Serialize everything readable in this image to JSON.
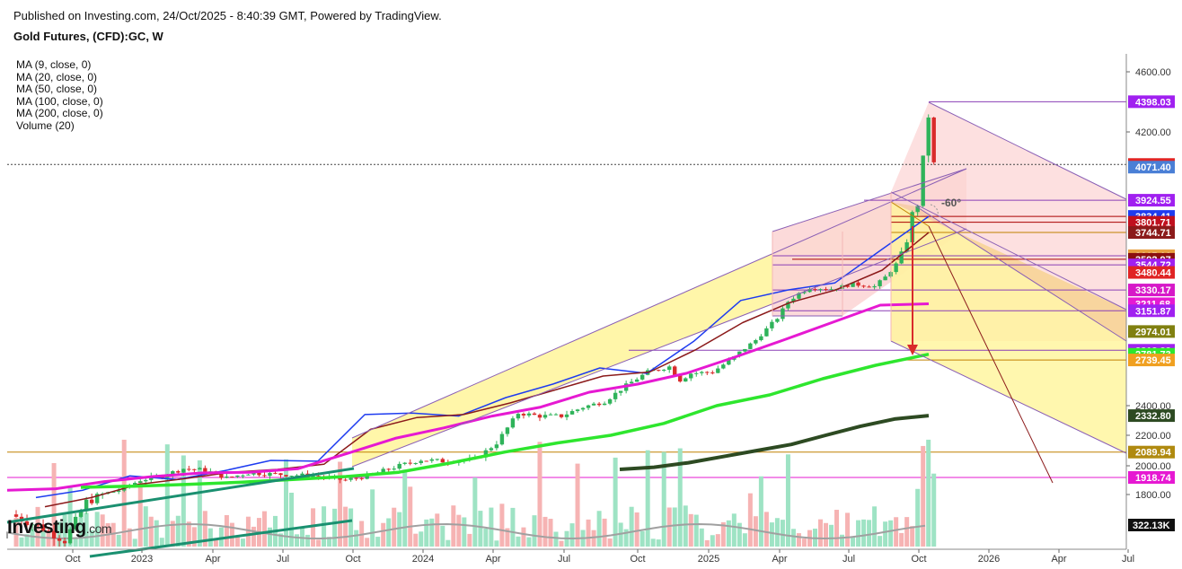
{
  "header": {
    "published": "Published on Investing.com, 24/Oct/2025 - 8:40:39 GMT, Powered by TradingView.",
    "title": "Gold Futures, (CFD):GC, W"
  },
  "indicators": [
    "MA (9, close, 0)",
    "MA (20, close, 0)",
    "MA (50, close, 0)",
    "MA (100, close, 0)",
    "MA (200, close, 0)",
    "Volume (20)"
  ],
  "logo": {
    "main": "Investing",
    "suffix": ".com"
  },
  "annotation_angle": "-60°",
  "colors": {
    "ma9": "#1e3cf0",
    "ma20": "#8b1a1a",
    "ma50": "#e619d2",
    "ma100": "#2ee62e",
    "ma200": "#2d4a22",
    "up": "#2fb35a",
    "down": "#d92b2b",
    "channel": "#fff59a",
    "pink": "#fcd6d6"
  },
  "chart_data": {
    "type": "line",
    "title": "Gold Futures, (CFD):GC, W",
    "x_ticks": [
      "Oct",
      "2023",
      "Apr",
      "Jul",
      "Oct",
      "2024",
      "Apr",
      "Jul",
      "Oct",
      "2025",
      "Apr",
      "Jul",
      "Oct",
      "2026",
      "Apr",
      "Jul"
    ],
    "y_ticks": [
      1800,
      2000,
      2200,
      2400,
      4200,
      4600
    ],
    "ylim": [
      1630,
      4740
    ],
    "price_labels": [
      {
        "value": 4398.03,
        "text": "4398.03",
        "color": "#a020f0"
      },
      {
        "value": 4081.11,
        "text": "4081.11",
        "color": "#e02424"
      },
      {
        "value": 4071.4,
        "text": "4071.40",
        "color": "#4a7fd6"
      },
      {
        "value": 3924.55,
        "text": "3924.55",
        "color": "#a020f0"
      },
      {
        "value": 3834.41,
        "text": "3834.41",
        "color": "#1e3cf0"
      },
      {
        "value": 3801.71,
        "text": "3801.71",
        "color": "#c0101e"
      },
      {
        "value": 3744.71,
        "text": "3744.71",
        "color": "#8b1a1a"
      },
      {
        "value": 3615.16,
        "text": "3615.16",
        "color": "#e8a040"
      },
      {
        "value": 3592.97,
        "text": "3592.97",
        "color": "#8b1010"
      },
      {
        "value": 3544.72,
        "text": "3544.72",
        "color": "#a020f0"
      },
      {
        "value": 3480.44,
        "text": "3480.44",
        "color": "#e02424"
      },
      {
        "value": 3330.17,
        "text": "3330.17",
        "color": "#d619c8"
      },
      {
        "value": 3211.68,
        "text": "3211.68",
        "color": "#e619d2"
      },
      {
        "value": 3151.87,
        "text": "3151.87",
        "color": "#a020f0"
      },
      {
        "value": 2974.01,
        "text": "2974.01",
        "color": "#808010"
      },
      {
        "value": 2813.23,
        "text": "2813.23",
        "color": "#a020f0"
      },
      {
        "value": 2781.73,
        "text": "2781.73",
        "color": "#2ee62e"
      },
      {
        "value": 2739.45,
        "text": "2739.45",
        "color": "#f0a020"
      },
      {
        "value": 2332.8,
        "text": "2332.80",
        "color": "#2d4a22"
      },
      {
        "value": 2089.94,
        "text": "2089.94",
        "color": "#b08a10"
      },
      {
        "value": 1918.74,
        "text": "1918.74",
        "color": "#e619d2"
      }
    ],
    "volume_label": "322.13K",
    "series": [
      {
        "name": "MA (9, close, 0)",
        "color": "#1e3cf0",
        "values": [
          1790,
          1830,
          1930,
          1905,
          1965,
          2035,
          2030,
          2340,
          2350,
          2330,
          2460,
          2560,
          2680,
          2640,
          2890,
          3240,
          3330,
          3390,
          3650,
          3834.41
        ]
      },
      {
        "name": "MA (20, close, 0)",
        "color": "#8b1a1a",
        "values": [
          1760,
          1790,
          1870,
          1910,
          1955,
          1975,
          2010,
          2240,
          2320,
          2340,
          2420,
          2520,
          2620,
          2650,
          2820,
          3050,
          3220,
          3330,
          3500,
          3744.71
        ]
      },
      {
        "name": "MA (50, close, 0)",
        "color": "#e619d2",
        "values": [
          1830,
          1840,
          1890,
          1925,
          1950,
          1955,
          1980,
          2080,
          2180,
          2250,
          2330,
          2390,
          2500,
          2560,
          2640,
          2760,
          2900,
          3050,
          3200,
          3211.68
        ]
      },
      {
        "name": "MA (100, close, 0)",
        "color": "#2ee62e",
        "values": [
          1850,
          1858,
          1870,
          1885,
          1905,
          1925,
          1955,
          2020,
          2090,
          2150,
          2200,
          2280,
          2400,
          2480,
          2600,
          2700,
          2781.73
        ]
      },
      {
        "name": "MA (200, close, 0)",
        "color": "#2d4a22",
        "values": [
          1975,
          1990,
          2020,
          2060,
          2100,
          2140,
          2200,
          2260,
          2310,
          2332.8
        ]
      }
    ]
  }
}
